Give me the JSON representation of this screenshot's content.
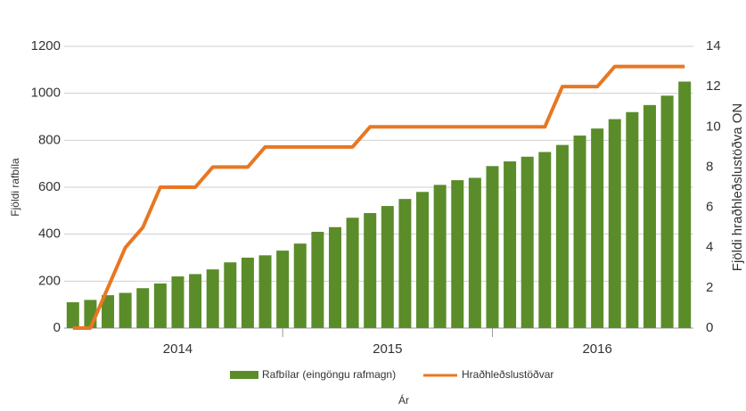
{
  "chart_data": {
    "type": "bar_line",
    "categories": [
      null,
      null,
      null,
      null,
      null,
      null,
      "2014",
      null,
      null,
      null,
      null,
      null,
      null,
      null,
      null,
      null,
      null,
      null,
      "2015",
      null,
      null,
      null,
      null,
      null,
      null,
      null,
      null,
      null,
      null,
      null,
      "2016",
      null,
      null,
      null,
      null,
      null
    ],
    "series": [
      {
        "name": "Rafbílar (eingöngu rafmagn)",
        "color": "#5b8c2a",
        "type": "bar",
        "values": [
          110,
          120,
          140,
          150,
          170,
          190,
          220,
          230,
          250,
          280,
          300,
          310,
          330,
          360,
          410,
          430,
          470,
          490,
          520,
          550,
          580,
          610,
          630,
          640,
          690,
          710,
          730,
          750,
          780,
          820,
          850,
          890,
          920,
          950,
          990,
          1050
        ]
      },
      {
        "name": "Hraðhleðslustöðvar",
        "color": "#e87722",
        "type": "line",
        "axis": "y2",
        "values": [
          0,
          0,
          2,
          4,
          5,
          7,
          7,
          7,
          8,
          8,
          8,
          9,
          9,
          9,
          9,
          9,
          9,
          10,
          10,
          10,
          10,
          10,
          10,
          10,
          10,
          10,
          10,
          10,
          12,
          12,
          12,
          13,
          13,
          13,
          13,
          13
        ]
      }
    ],
    "ylabel": "Fjöldi rafbíla",
    "y2label": "Fjöldi hraðhleðslustöðva ON",
    "xlabel": "Ár",
    "ylim": [
      0,
      1200
    ],
    "yticks": [
      0,
      200,
      400,
      600,
      800,
      1000,
      1200
    ],
    "y2lim": [
      0,
      14
    ],
    "y2ticks": [
      0,
      2,
      4,
      6,
      8,
      10,
      12,
      14
    ],
    "grid": true,
    "legend": "bottom"
  }
}
